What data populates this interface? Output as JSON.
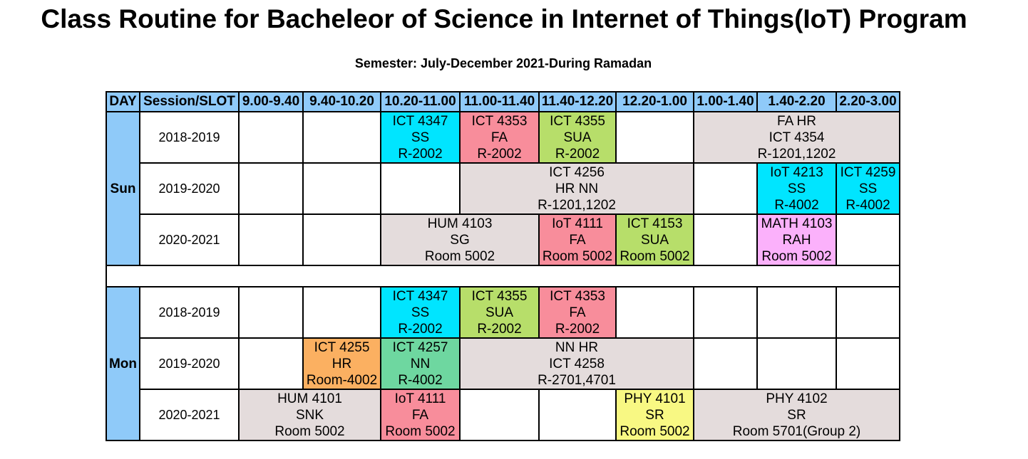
{
  "title": "Class Routine for Bacheleor of Science in Internet of Things(IoT) Program",
  "semester": "Semester: July-December 2021-During Ramadan",
  "header": {
    "day": "DAY",
    "session": "Session/SLOT",
    "slots": [
      "9.00-9.40",
      "9.40-10.20",
      "10.20-11.00",
      "11.00-11.40",
      "11.40-12.20",
      "12.20-1.00",
      "1.00-1.40",
      "1.40-2.20",
      "2.20-3.00"
    ]
  },
  "days": [
    {
      "day": "Sun",
      "rows": [
        {
          "session": "2018-2019",
          "cells": [
            {
              "span": 1,
              "lines": []
            },
            {
              "span": 1,
              "lines": []
            },
            {
              "span": 1,
              "color": "#00e5ff",
              "lines": [
                "ICT 4347",
                "SS",
                "R-2002"
              ]
            },
            {
              "span": 1,
              "color": "#f88d9b",
              "lines": [
                "ICT 4353",
                "FA",
                "R-2002"
              ]
            },
            {
              "span": 1,
              "color": "#b7de6a",
              "lines": [
                "ICT 4355",
                "SUA",
                "R-2002"
              ]
            },
            {
              "span": 1,
              "lines": []
            },
            {
              "span": 3,
              "color": "#e4dcdc",
              "lines": [
                "FA HR",
                "ICT 4354",
                "R-1201,1202"
              ]
            }
          ]
        },
        {
          "session": "2019-2020",
          "cells": [
            {
              "span": 1,
              "lines": []
            },
            {
              "span": 1,
              "lines": []
            },
            {
              "span": 1,
              "lines": []
            },
            {
              "span": 3,
              "color": "#e4dcdc",
              "lines": [
                "ICT 4256",
                "HR NN",
                "R-1201,1202"
              ]
            },
            {
              "span": 1,
              "lines": []
            },
            {
              "span": 1,
              "color": "#00e5ff",
              "lines": [
                "IoT 4213",
                "SS",
                "R-4002"
              ]
            },
            {
              "span": 1,
              "color": "#00e5ff",
              "lines": [
                "ICT 4259",
                "SS",
                "R-4002"
              ]
            }
          ]
        },
        {
          "session": "2020-2021",
          "cells": [
            {
              "span": 1,
              "lines": []
            },
            {
              "span": 1,
              "lines": []
            },
            {
              "span": 2,
              "color": "#e4dcdc",
              "lines": [
                "HUM 4103",
                "SG",
                "Room 5002"
              ]
            },
            {
              "span": 1,
              "color": "#f88d9b",
              "lines": [
                "IoT 4111",
                "FA",
                "Room 5002"
              ]
            },
            {
              "span": 1,
              "color": "#b7de6a",
              "lines": [
                "ICT 4153",
                "SUA",
                "Room 5002"
              ]
            },
            {
              "span": 1,
              "lines": []
            },
            {
              "span": 1,
              "color": "#fbb1fb",
              "lines": [
                "MATH 4103",
                "RAH",
                "Room 5002"
              ]
            },
            {
              "span": 1,
              "lines": []
            }
          ]
        }
      ]
    },
    {
      "day": "Mon",
      "rows": [
        {
          "session": "2018-2019",
          "cells": [
            {
              "span": 1,
              "lines": []
            },
            {
              "span": 1,
              "lines": []
            },
            {
              "span": 1,
              "color": "#00e5ff",
              "lines": [
                "ICT 4347",
                "SS",
                "R-2002"
              ]
            },
            {
              "span": 1,
              "color": "#b7de6a",
              "lines": [
                "ICT 4355",
                "SUA",
                "R-2002"
              ]
            },
            {
              "span": 1,
              "color": "#f88d9b",
              "lines": [
                "ICT 4353",
                "FA",
                "R-2002"
              ]
            },
            {
              "span": 1,
              "lines": []
            },
            {
              "span": 1,
              "lines": []
            },
            {
              "span": 1,
              "lines": []
            },
            {
              "span": 1,
              "lines": []
            }
          ]
        },
        {
          "session": "2019-2020",
          "cells": [
            {
              "span": 1,
              "lines": []
            },
            {
              "span": 1,
              "color": "#fbb061",
              "lines": [
                "ICT 4255",
                "HR",
                "Room-4002"
              ]
            },
            {
              "span": 1,
              "color": "#6ed7a0",
              "lines": [
                "ICT 4257",
                "NN",
                "R-4002"
              ]
            },
            {
              "span": 3,
              "color": "#e4dcdc",
              "lines": [
                "NN HR",
                "ICT 4258",
                "R-2701,4701"
              ]
            },
            {
              "span": 1,
              "lines": []
            },
            {
              "span": 1,
              "lines": []
            },
            {
              "span": 1,
              "lines": []
            }
          ]
        },
        {
          "session": "2020-2021",
          "cells": [
            {
              "span": 2,
              "color": "#e4dcdc",
              "lines": [
                "HUM 4101",
                "SNK",
                "Room 5002"
              ]
            },
            {
              "span": 1,
              "color": "#f88d9b",
              "lines": [
                "IoT 4111",
                "FA",
                "Room 5002"
              ]
            },
            {
              "span": 1,
              "lines": []
            },
            {
              "span": 1,
              "lines": []
            },
            {
              "span": 1,
              "color": "#f8f883",
              "lines": [
                "PHY 4101",
                "SR",
                "Room 5002"
              ]
            },
            {
              "span": 3,
              "color": "#e4dcdc",
              "lines": [
                "PHY 4102",
                "SR",
                "Room 5701(Group 2)"
              ]
            }
          ]
        }
      ]
    }
  ]
}
